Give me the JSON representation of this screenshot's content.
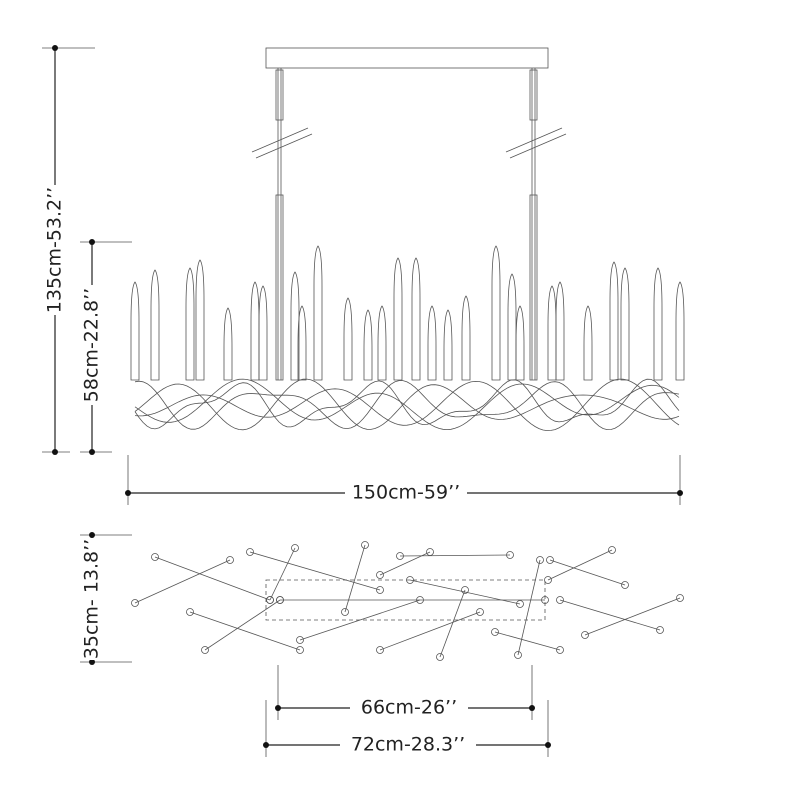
{
  "dimensions": {
    "total_height": {
      "label": "135cm-53.2’’"
    },
    "body_height": {
      "label": "58cm-22.8’’"
    },
    "length": {
      "label": "150cm-59’’"
    },
    "width": {
      "label": "35cm- 13.8’’"
    },
    "rod_spacing": {
      "label": "66cm-26’’"
    },
    "canopy_length": {
      "label": "72cm-28.3’’"
    }
  }
}
